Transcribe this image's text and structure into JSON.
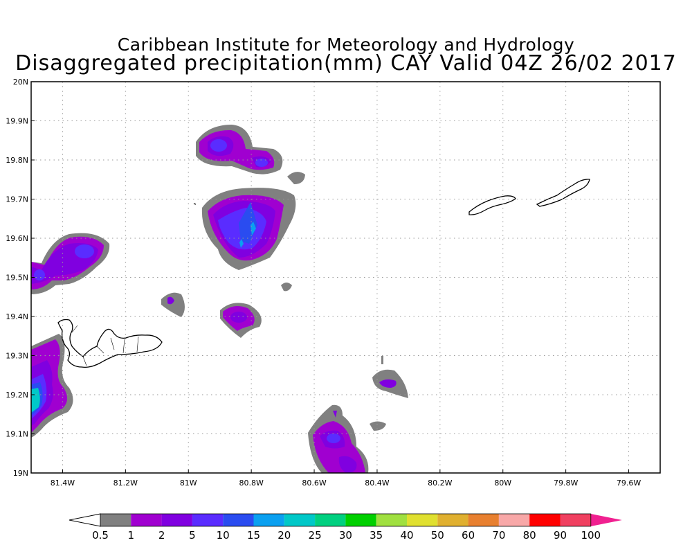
{
  "header": {
    "line1": "Caribbean Institute for Meteorology and Hydrology",
    "line2": "Disaggregated precipitation(mm) CAY Valid 04Z 26/02 2017"
  },
  "map": {
    "lon_range": [
      -81.5,
      -79.5
    ],
    "lat_range": [
      19.0,
      20.0
    ],
    "x_ticks": [
      {
        "lon": -81.4,
        "label": "81.4W"
      },
      {
        "lon": -81.2,
        "label": "81.2W"
      },
      {
        "lon": -81.0,
        "label": "81W"
      },
      {
        "lon": -80.8,
        "label": "80.8W"
      },
      {
        "lon": -80.6,
        "label": "80.6W"
      },
      {
        "lon": -80.4,
        "label": "80.4W"
      },
      {
        "lon": -80.2,
        "label": "80.2W"
      },
      {
        "lon": -80.0,
        "label": "80W"
      },
      {
        "lon": -79.8,
        "label": "79.8W"
      },
      {
        "lon": -79.6,
        "label": "79.6W"
      }
    ],
    "y_ticks": [
      {
        "lat": 20.0,
        "label": "20N"
      },
      {
        "lat": 19.9,
        "label": "19.9N"
      },
      {
        "lat": 19.8,
        "label": "19.8N"
      },
      {
        "lat": 19.7,
        "label": "19.7N"
      },
      {
        "lat": 19.6,
        "label": "19.6N"
      },
      {
        "lat": 19.5,
        "label": "19.5N"
      },
      {
        "lat": 19.4,
        "label": "19.4N"
      },
      {
        "lat": 19.3,
        "label": "19.3N"
      },
      {
        "lat": 19.2,
        "label": "19.2N"
      },
      {
        "lat": 19.1,
        "label": "19.1N"
      },
      {
        "lat": 19.0,
        "label": "19N"
      }
    ],
    "grid": true
  },
  "colorbar": {
    "labels": [
      "0.5",
      "1",
      "2",
      "5",
      "10",
      "15",
      "20",
      "25",
      "30",
      "35",
      "40",
      "50",
      "60",
      "70",
      "80",
      "90",
      "100"
    ],
    "colors": [
      "#ffffff",
      "#808080",
      "#a000d0",
      "#8000e0",
      "#5a2cff",
      "#2a4cf0",
      "#0aa0f0",
      "#00c8c8",
      "#00d080",
      "#00d000",
      "#a0e040",
      "#e0e030",
      "#e0b030",
      "#e88030",
      "#f8a8a8",
      "#ff0000",
      "#f04060",
      "#f02090"
    ]
  }
}
